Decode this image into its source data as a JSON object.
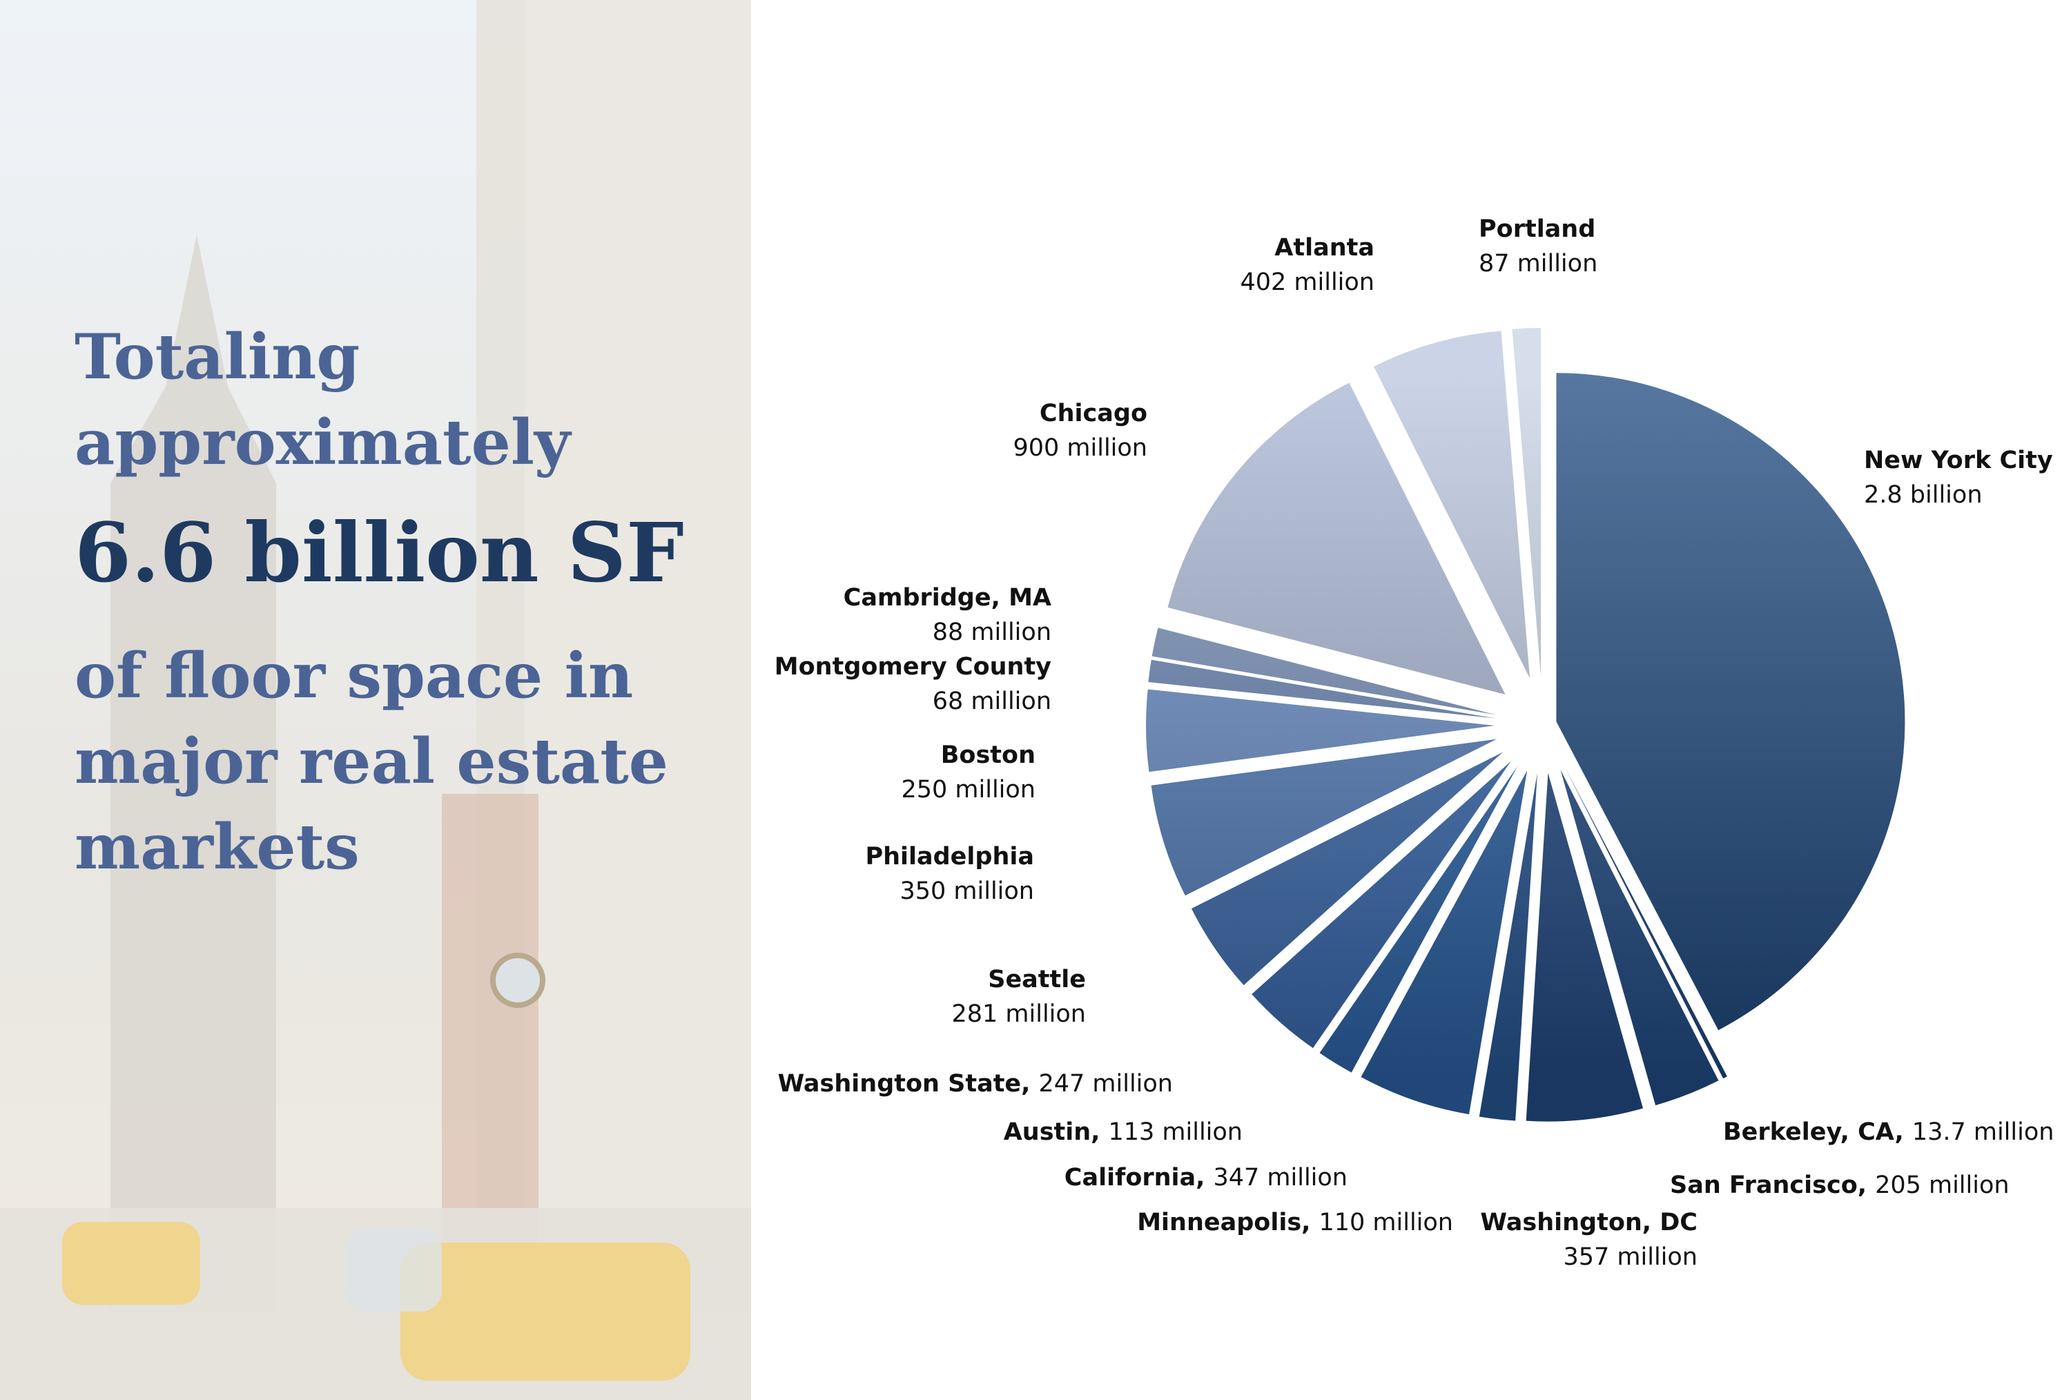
{
  "headline": {
    "intro": [
      "Totaling",
      "approximately"
    ],
    "emphasis": "6.6 billion SF",
    "rest": [
      "of floor space in",
      "major real estate",
      "markets"
    ]
  },
  "chart_data": {
    "type": "pie",
    "categories": [
      "New York City",
      "Berkeley, CA,",
      "San Francisco,",
      "Washington, DC",
      "Minneapolis,",
      "California,",
      "Austin,",
      "Washington State,",
      "Seattle",
      "Philadelphia",
      "Boston",
      "Montgomery County",
      "Cambridge, MA",
      "Chicago",
      "Atlanta",
      "Portland"
    ],
    "values": [
      2800,
      13.7,
      205,
      357,
      110,
      347,
      113,
      247,
      281,
      350,
      250,
      68,
      88,
      900,
      402,
      87
    ],
    "value_labels": [
      "2.8 billion",
      "13.7 million",
      "205 million",
      "357 million",
      "110 million",
      "347 million",
      "113 million",
      "247 million",
      "281 million",
      "350 million",
      "250 million",
      "68 million",
      "88 million",
      "900 million",
      "402 million",
      "87 million"
    ],
    "colors": [
      "#1f4a80",
      "#1f4a80",
      "#24508a",
      "#244e8a",
      "#2a5a9a",
      "#2e65ab",
      "#2f68b0",
      "#3a6db5",
      "#3f70b5",
      "#5580c0",
      "#6a8fca",
      "#6a85b5",
      "#7890bb",
      "#a8b6d3",
      "#b8c5dd",
      "#c8d3e6"
    ]
  }
}
